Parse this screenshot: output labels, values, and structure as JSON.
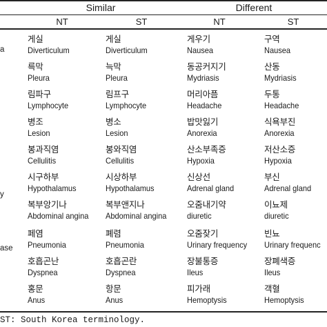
{
  "header": {
    "similar_label": "Similar",
    "different_label": "Different",
    "nt_label": "NT",
    "st_label": "ST"
  },
  "row_labels": [
    "a",
    "y",
    "ase"
  ],
  "rows": [
    {
      "sim_nt_ko": "게실",
      "sim_nt_en": "Diverticulum",
      "sim_st_ko": "게실",
      "sim_st_en": "Diverticulum",
      "dif_nt_ko": "게우기",
      "dif_nt_en": "Nausea",
      "dif_st_ko": "구역",
      "dif_st_en": "Nausea"
    },
    {
      "sim_nt_ko": "륵막",
      "sim_nt_en": "Pleura",
      "sim_st_ko": "늑막",
      "sim_st_en": "Pleura",
      "dif_nt_ko": "동공커지기",
      "dif_nt_en": "Mydriasis",
      "dif_st_ko": "산동",
      "dif_st_en": "Mydriasis"
    },
    {
      "sim_nt_ko": "림파구",
      "sim_nt_en": "Lymphocyte",
      "sim_st_ko": "림프구",
      "sim_st_en": "Lymphocyte",
      "dif_nt_ko": "머리아픔",
      "dif_nt_en": "Headache",
      "dif_st_ko": "두통",
      "dif_st_en": "Headache"
    },
    {
      "sim_nt_ko": "병조",
      "sim_nt_en": "Lesion",
      "sim_st_ko": "병소",
      "sim_st_en": "Lesion",
      "dif_nt_ko": "밥맛잃기",
      "dif_nt_en": "Anorexia",
      "dif_st_ko": "식욕부진",
      "dif_st_en": "Anorexia"
    },
    {
      "sim_nt_ko": "봉과직염",
      "sim_nt_en": "Cellulitis",
      "sim_st_ko": "봉와직염",
      "sim_st_en": "Cellulitis",
      "dif_nt_ko": "산소부족증",
      "dif_nt_en": "Hypoxia",
      "dif_st_ko": "저산소증",
      "dif_st_en": "Hypoxia"
    },
    {
      "sim_nt_ko": "시구하부",
      "sim_nt_en": "Hypothalamus",
      "sim_st_ko": "시상하부",
      "sim_st_en": "Hypothalamus",
      "dif_nt_ko": "신상선",
      "dif_nt_en": "Adrenal gland",
      "dif_st_ko": "부신",
      "dif_st_en": "Adrenal gland"
    },
    {
      "sim_nt_ko": "복부앙기나",
      "sim_nt_en": "Abdominal angina",
      "sim_st_ko": "복부앤지나",
      "sim_st_en": "Abdominal angina",
      "dif_nt_ko": "오줌내기약",
      "dif_nt_en": "diuretic",
      "dif_st_ko": "이뇨제",
      "dif_st_en": "diuretic"
    },
    {
      "sim_nt_ko": "페염",
      "sim_nt_en": "Pneumonia",
      "sim_st_ko": "폐렴",
      "sim_st_en": "Pneumonia",
      "dif_nt_ko": "오줌잦기",
      "dif_nt_en": "Urinary frequency",
      "dif_st_ko": "빈뇨",
      "dif_st_en": "Urinary frequenc"
    },
    {
      "sim_nt_ko": "호흡곤난",
      "sim_nt_en": "Dyspnea",
      "sim_st_ko": "호흡곤란",
      "sim_st_en": "Dyspnea",
      "dif_nt_ko": "장불통증",
      "dif_nt_en": "Ileus",
      "dif_st_ko": "장폐색증",
      "dif_st_en": "Ileus"
    },
    {
      "sim_nt_ko": "홍문",
      "sim_nt_en": "Anus",
      "sim_st_ko": "항문",
      "sim_st_en": "Anus",
      "dif_nt_ko": "피가래",
      "dif_nt_en": "Hemoptysis",
      "dif_st_ko": "객혈",
      "dif_st_en": "Hemoptysis"
    }
  ],
  "footnote": "ST: South Korea terminology."
}
